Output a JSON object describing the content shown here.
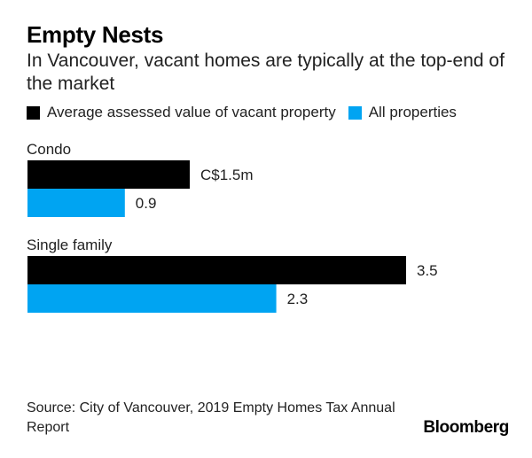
{
  "header": {
    "title": "Empty Nests",
    "subtitle": "In Vancouver, vacant homes are typically at the top-end of the market"
  },
  "legend": [
    {
      "label": "Average assessed value of vacant property",
      "color": "#000000"
    },
    {
      "label": "All properties",
      "color": "#00a4f2"
    }
  ],
  "chart_data": {
    "type": "bar",
    "orientation": "horizontal",
    "categories": [
      "Condo",
      "Single family"
    ],
    "series": [
      {
        "name": "Average assessed value of vacant property",
        "values": [
          1.5,
          3.5
        ],
        "color": "#000000"
      },
      {
        "name": "All properties",
        "values": [
          0.9,
          2.3
        ],
        "color": "#00a4f2"
      }
    ],
    "value_labels": [
      [
        "C$1.5m",
        "3.5"
      ],
      [
        "0.9",
        "2.3"
      ]
    ],
    "unit": "C$m",
    "xlim": [
      0,
      3.5
    ],
    "grid": false
  },
  "footer": {
    "source": "Source: City of Vancouver, 2019 Empty Homes Tax Annual Report",
    "brand": "Bloomberg"
  }
}
